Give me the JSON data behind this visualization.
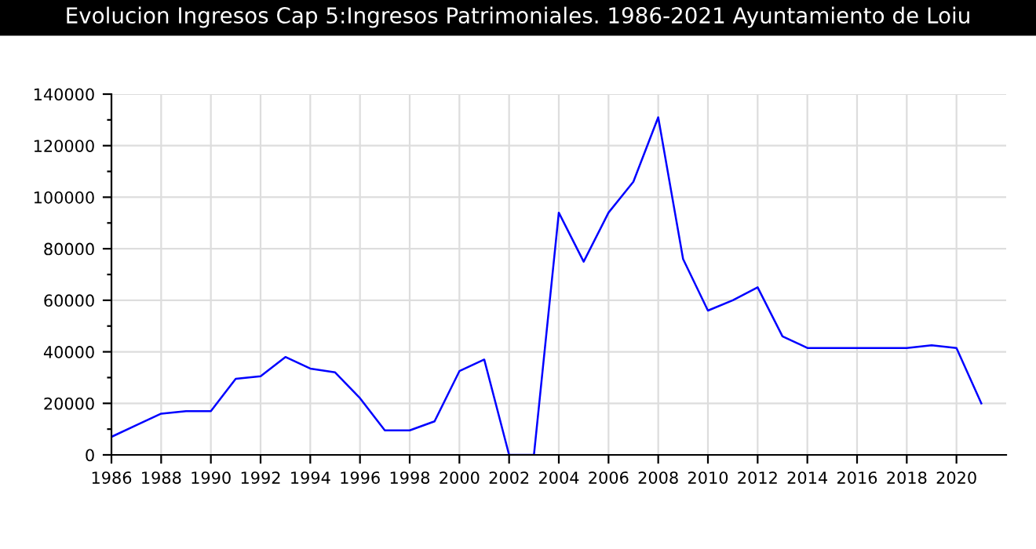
{
  "chart_data": {
    "type": "line",
    "title": "Evolucion Ingresos Cap 5:Ingresos Patrimoniales. 1986-2021 Ayuntamiento de Loiu",
    "x": [
      1986,
      1987,
      1988,
      1989,
      1990,
      1991,
      1992,
      1993,
      1994,
      1995,
      1996,
      1997,
      1998,
      1999,
      2000,
      2001,
      2002,
      2003,
      2004,
      2005,
      2006,
      2007,
      2008,
      2009,
      2010,
      2011,
      2012,
      2013,
      2014,
      2015,
      2016,
      2017,
      2018,
      2019,
      2020,
      2021
    ],
    "series": [
      {
        "color": "#0000ff",
        "values": [
          7000,
          11500,
          16000,
          17000,
          17000,
          29500,
          30500,
          38000,
          33500,
          32000,
          22000,
          9500,
          9500,
          13000,
          32500,
          37000,
          0,
          0,
          94000,
          75000,
          94000,
          106000,
          131000,
          76000,
          56000,
          60000,
          65000,
          46000,
          41500,
          41500,
          41500,
          41500,
          41500,
          42500,
          41500,
          20000
        ]
      }
    ],
    "xlim": [
      1986,
      2022
    ],
    "xticks": [
      1986,
      1988,
      1990,
      1992,
      1994,
      1996,
      1998,
      2000,
      2002,
      2004,
      2006,
      2008,
      2010,
      2012,
      2014,
      2016,
      2018,
      2020
    ],
    "ylim": [
      0,
      140000
    ],
    "yticks": [
      0,
      {
        "value": 10000,
        "label": null
      },
      20000,
      {
        "value": 30000,
        "label": null
      },
      40000,
      {
        "value": 50000,
        "label": null
      },
      60000,
      {
        "value": 70000,
        "label": null
      },
      80000,
      {
        "value": 90000,
        "label": null
      },
      100000,
      {
        "value": 110000,
        "label": null
      },
      120000,
      {
        "value": 130000,
        "label": null
      },
      140000
    ],
    "grid": true,
    "marker": "none",
    "line_style": "solid",
    "legend": false
  }
}
